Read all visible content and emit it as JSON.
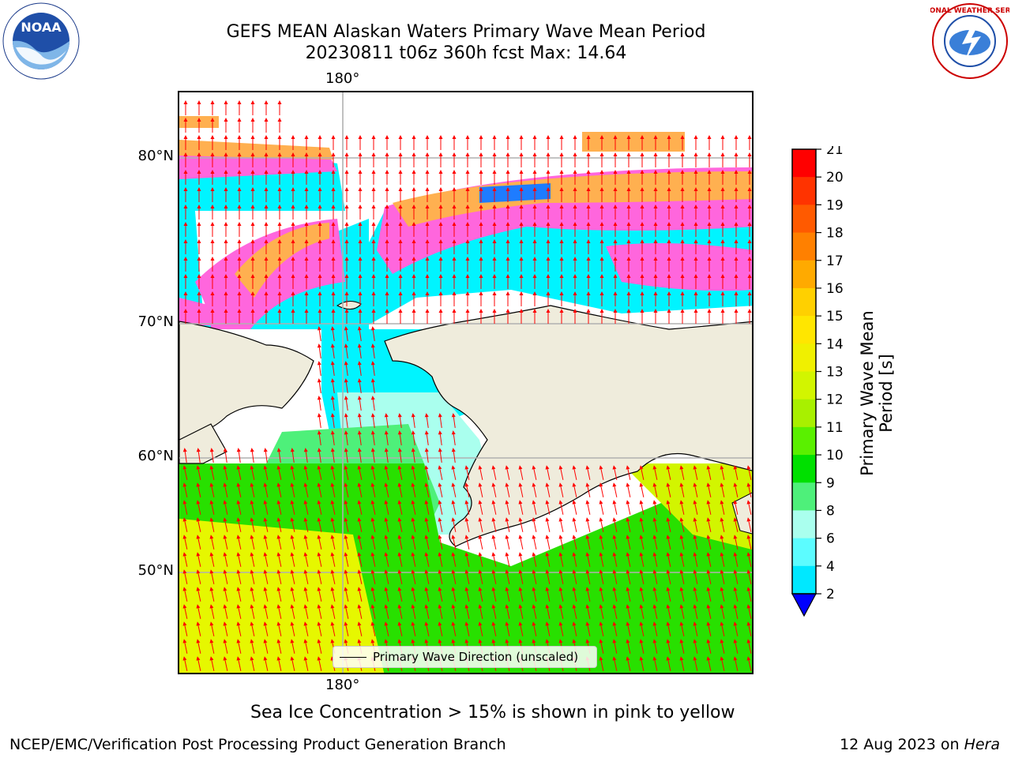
{
  "title": {
    "line1": "GEFS MEAN Alaskan Waters Primary Wave Mean Period",
    "line2": "20230811 t06z 360h fcst   Max: 14.64"
  },
  "axes": {
    "lon_top": "180°",
    "lon_bottom": "180°",
    "lat_labels": [
      "80°N",
      "70°N",
      "60°N",
      "50°N"
    ]
  },
  "legend": {
    "label": "Primary Wave Direction (unscaled)"
  },
  "colorbar": {
    "title": "Primary Wave Mean Period [s]",
    "ticks": [
      "21",
      "20",
      "19",
      "18",
      "17",
      "16",
      "15",
      "14",
      "13",
      "12",
      "11",
      "10",
      "9",
      "8",
      "6",
      "4",
      "2"
    ],
    "colors": [
      "#ff0000",
      "#ff3300",
      "#ff5a00",
      "#ff8000",
      "#ffaa00",
      "#ffd000",
      "#ffe600",
      "#f0f000",
      "#d2f500",
      "#a8f000",
      "#5af000",
      "#00e000",
      "#4ef07a",
      "#aaffee",
      "#5cfcff",
      "#00e8ff",
      "#0080ff"
    ],
    "extend_color": "#0000ff"
  },
  "note": "Sea Ice Concentration > 15% is shown in pink to yellow",
  "footer": {
    "left": "NCEP/EMC/Verification Post Processing Product Generation Branch",
    "right_date": "12 Aug 2023 on",
    "right_host": "Hera"
  },
  "colors": {
    "land": "#efecdc",
    "arrow": "#ff0000",
    "ice_pink": "#ff66dd",
    "ice_orange": "#ffb050",
    "ocean_cyan": "#00f4ff",
    "ocean_green": "#28e000",
    "ocean_yellow": "#e6f700"
  },
  "logos": {
    "left": "NOAA",
    "right": "NATIONAL WEATHER SERVICE"
  }
}
